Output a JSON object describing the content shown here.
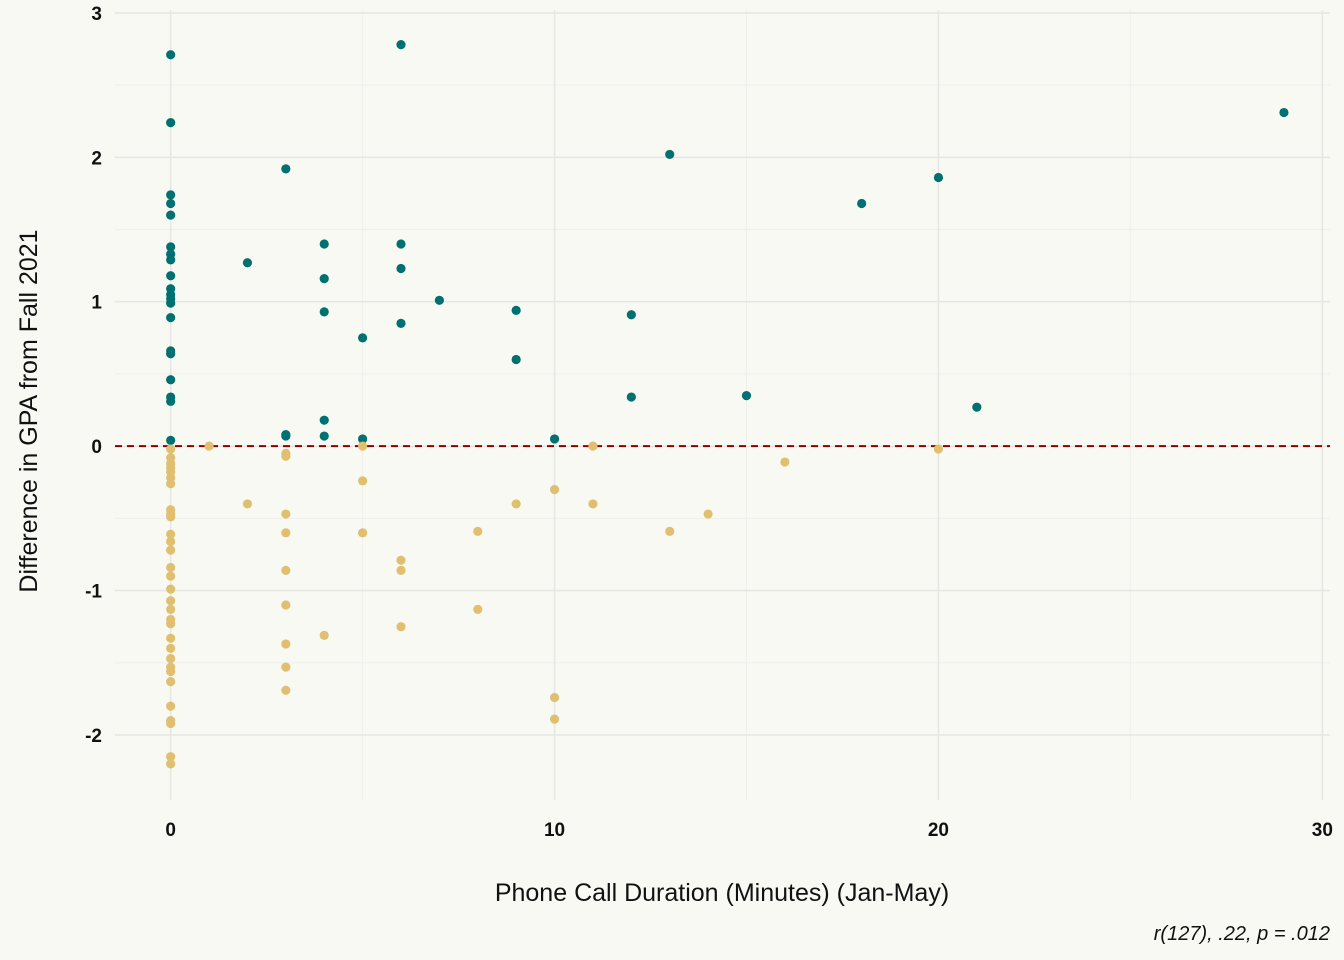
{
  "chart_data": {
    "type": "scatter",
    "xlabel": "Phone Call Duration (Minutes) (Jan-May)",
    "ylabel": "Difference in GPA from Fall 2021",
    "caption": "r(127), .22, p = .012",
    "xlim": [
      -1.45,
      30.2
    ],
    "ylim": [
      -2.45,
      3.02
    ],
    "x_ticks": [
      0,
      10,
      20,
      30
    ],
    "y_ticks": [
      -2,
      -1,
      0,
      1,
      2,
      3
    ],
    "x_tick_labels": [
      "0",
      "10",
      "20",
      "30"
    ],
    "y_tick_labels": [
      "-2",
      "-1",
      "0",
      "1",
      "2",
      "3"
    ],
    "x_minor_ticks": [
      5,
      15,
      25
    ],
    "y_minor_ticks": [
      -1.5,
      -0.5,
      0.5,
      1.5,
      2.5
    ],
    "grid": true,
    "reference_line": {
      "y": 0,
      "style": "dashed",
      "color": "#8b0000"
    },
    "colors": {
      "positive": "#007070",
      "negative": "#e0c070",
      "background": "#f9f9f4"
    },
    "series": [
      {
        "color": "#007070",
        "points": [
          [
            0,
            2.71
          ],
          [
            0,
            2.24
          ],
          [
            0,
            1.74
          ],
          [
            0,
            1.68
          ],
          [
            0,
            1.6
          ],
          [
            0,
            1.38
          ],
          [
            0,
            1.33
          ],
          [
            0,
            1.29
          ],
          [
            0,
            1.18
          ],
          [
            0,
            1.09
          ],
          [
            0,
            1.05
          ],
          [
            0,
            1.02
          ],
          [
            0,
            0.99
          ],
          [
            0,
            0.89
          ],
          [
            0,
            0.66
          ],
          [
            0,
            0.64
          ],
          [
            0,
            0.46
          ],
          [
            0,
            0.34
          ],
          [
            0,
            0.31
          ],
          [
            0,
            0.04
          ],
          [
            2,
            1.27
          ],
          [
            3,
            1.92
          ],
          [
            3,
            0.08
          ],
          [
            3,
            0.07
          ],
          [
            4,
            1.4
          ],
          [
            4,
            1.16
          ],
          [
            4,
            0.93
          ],
          [
            4,
            0.18
          ],
          [
            4,
            0.07
          ],
          [
            5,
            0.75
          ],
          [
            5,
            0.05
          ],
          [
            6,
            2.78
          ],
          [
            6,
            1.4
          ],
          [
            6,
            1.23
          ],
          [
            6,
            0.85
          ],
          [
            7,
            1.01
          ],
          [
            9,
            0.94
          ],
          [
            9,
            0.6
          ],
          [
            10,
            0.05
          ],
          [
            12,
            0.91
          ],
          [
            12,
            0.34
          ],
          [
            13,
            2.02
          ],
          [
            15,
            0.35
          ],
          [
            18,
            1.68
          ],
          [
            20,
            1.86
          ],
          [
            21,
            0.27
          ],
          [
            29,
            2.31
          ]
        ]
      },
      {
        "color": "#e0c070",
        "points": [
          [
            0,
            -0.02
          ],
          [
            0,
            -0.08
          ],
          [
            0,
            -0.12
          ],
          [
            0,
            -0.15
          ],
          [
            0,
            -0.18
          ],
          [
            0,
            -0.22
          ],
          [
            0,
            -0.26
          ],
          [
            0,
            -0.44
          ],
          [
            0,
            -0.47
          ],
          [
            0,
            -0.49
          ],
          [
            0,
            -0.61
          ],
          [
            0,
            -0.66
          ],
          [
            0,
            -0.72
          ],
          [
            0,
            -0.84
          ],
          [
            0,
            -0.9
          ],
          [
            0,
            -0.99
          ],
          [
            0,
            -1.07
          ],
          [
            0,
            -1.13
          ],
          [
            0,
            -1.2
          ],
          [
            0,
            -1.23
          ],
          [
            0,
            -1.33
          ],
          [
            0,
            -1.4
          ],
          [
            0,
            -1.47
          ],
          [
            0,
            -1.53
          ],
          [
            0,
            -1.56
          ],
          [
            0,
            -1.63
          ],
          [
            0,
            -1.8
          ],
          [
            0,
            -1.9
          ],
          [
            0,
            -1.92
          ],
          [
            0,
            -2.15
          ],
          [
            0,
            -2.2
          ],
          [
            1,
            0.0
          ],
          [
            2,
            -0.4
          ],
          [
            3,
            -0.05
          ],
          [
            3,
            -0.07
          ],
          [
            3,
            -0.47
          ],
          [
            3,
            -0.6
          ],
          [
            3,
            -0.86
          ],
          [
            3,
            -1.1
          ],
          [
            3,
            -1.37
          ],
          [
            3,
            -1.53
          ],
          [
            3,
            -1.69
          ],
          [
            4,
            -1.31
          ],
          [
            5,
            0.0
          ],
          [
            5,
            -0.24
          ],
          [
            5,
            -0.6
          ],
          [
            6,
            -0.79
          ],
          [
            6,
            -0.86
          ],
          [
            6,
            -1.25
          ],
          [
            8,
            -0.59
          ],
          [
            8,
            -1.13
          ],
          [
            9,
            -0.4
          ],
          [
            10,
            -0.3
          ],
          [
            10,
            -1.74
          ],
          [
            10,
            -1.89
          ],
          [
            11,
            0.0
          ],
          [
            11,
            -0.4
          ],
          [
            13,
            -0.59
          ],
          [
            14,
            -0.47
          ],
          [
            16,
            -0.11
          ],
          [
            20,
            -0.02
          ]
        ]
      }
    ]
  }
}
